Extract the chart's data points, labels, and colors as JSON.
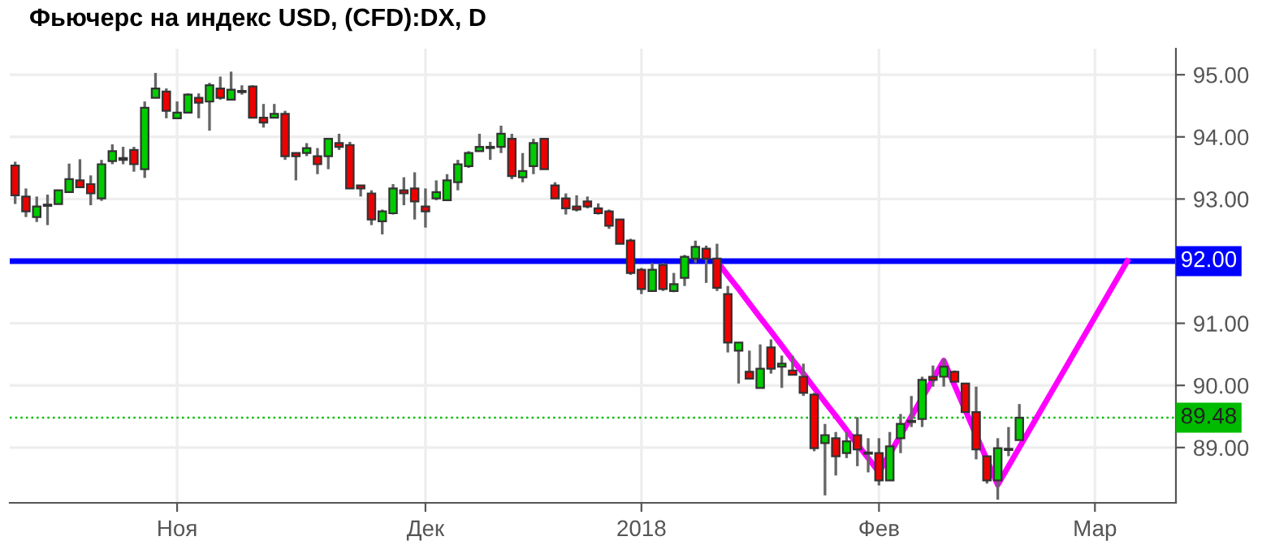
{
  "chart_data": {
    "type": "candlestick",
    "title": "Фьючерс на индекс USD, (CFD):DX, D",
    "categories": [
      null,
      null,
      null,
      null,
      null,
      null,
      null,
      null,
      null,
      null,
      null,
      null,
      null,
      null,
      null,
      "Ноя",
      null,
      null,
      null,
      null,
      null,
      null,
      null,
      null,
      null,
      null,
      null,
      null,
      null,
      null,
      null,
      null,
      null,
      null,
      null,
      null,
      null,
      null,
      "Дек",
      null,
      null,
      null,
      null,
      null,
      null,
      null,
      null,
      null,
      null,
      null,
      null,
      null,
      null,
      null,
      null,
      null,
      null,
      null,
      "2018",
      null,
      null,
      null,
      null,
      null,
      null,
      null,
      null,
      null,
      null,
      null,
      null,
      null,
      null,
      null,
      null,
      null,
      null,
      null,
      null,
      null,
      "Фев",
      null,
      null,
      null,
      null,
      null,
      null,
      null,
      null,
      null,
      null,
      null,
      null,
      null,
      null,
      null,
      null,
      null,
      null,
      null,
      "Мар",
      null,
      null,
      null,
      null,
      null,
      null,
      null
    ],
    "ohlc": [
      [
        93.54,
        93.6,
        92.92,
        93.06
      ],
      [
        93.04,
        93.17,
        92.71,
        92.8
      ],
      [
        92.71,
        93.04,
        92.63,
        92.88
      ],
      [
        92.89,
        93.07,
        92.58,
        92.9
      ],
      [
        92.92,
        93.14,
        92.92,
        93.14
      ],
      [
        93.11,
        93.57,
        93.11,
        93.32
      ],
      [
        93.3,
        93.64,
        93.19,
        93.19
      ],
      [
        93.24,
        93.38,
        92.9,
        93.09
      ],
      [
        93.01,
        93.63,
        92.97,
        93.56
      ],
      [
        93.61,
        93.88,
        93.56,
        93.77
      ],
      [
        93.66,
        93.84,
        93.56,
        93.63
      ],
      [
        93.79,
        93.84,
        93.44,
        93.56
      ],
      [
        93.48,
        94.57,
        93.34,
        94.47
      ],
      [
        94.63,
        95.03,
        94.63,
        94.78
      ],
      [
        94.73,
        94.78,
        94.3,
        94.42
      ],
      [
        94.3,
        94.57,
        94.3,
        94.39
      ],
      [
        94.39,
        94.7,
        94.39,
        94.68
      ],
      [
        94.63,
        94.7,
        94.3,
        94.55
      ],
      [
        94.57,
        94.87,
        94.1,
        94.83
      ],
      [
        94.78,
        94.97,
        94.6,
        94.63
      ],
      [
        94.6,
        95.05,
        94.6,
        94.76
      ],
      [
        94.72,
        94.83,
        94.68,
        94.73
      ],
      [
        94.81,
        94.83,
        94.31,
        94.31
      ],
      [
        94.31,
        94.53,
        94.15,
        94.23
      ],
      [
        94.31,
        94.53,
        94.31,
        94.37
      ],
      [
        94.37,
        94.42,
        93.63,
        93.69
      ],
      [
        93.74,
        93.74,
        93.3,
        93.69
      ],
      [
        93.74,
        93.9,
        93.69,
        93.82
      ],
      [
        93.69,
        93.82,
        93.4,
        93.56
      ],
      [
        93.69,
        93.97,
        93.48,
        93.97
      ],
      [
        93.9,
        94.05,
        93.79,
        93.84
      ],
      [
        93.87,
        93.92,
        93.17,
        93.17
      ],
      [
        93.22,
        93.22,
        93.04,
        93.17
      ],
      [
        93.09,
        93.14,
        92.58,
        92.67
      ],
      [
        92.64,
        92.83,
        92.43,
        92.8
      ],
      [
        92.77,
        93.24,
        92.75,
        93.17
      ],
      [
        93.14,
        93.35,
        92.9,
        93.09
      ],
      [
        93.17,
        93.43,
        92.67,
        92.96
      ],
      [
        92.88,
        93.17,
        92.54,
        92.8
      ],
      [
        93.01,
        93.3,
        92.98,
        93.11
      ],
      [
        92.98,
        93.4,
        92.98,
        93.3
      ],
      [
        93.27,
        93.63,
        93.14,
        93.56
      ],
      [
        93.53,
        93.77,
        93.5,
        93.74
      ],
      [
        93.77,
        94.05,
        93.77,
        93.84
      ],
      [
        93.83,
        93.92,
        93.63,
        93.82
      ],
      [
        93.84,
        94.18,
        93.74,
        94.05
      ],
      [
        93.97,
        94.05,
        93.32,
        93.37
      ],
      [
        93.35,
        93.74,
        93.27,
        93.45
      ],
      [
        93.53,
        93.97,
        93.4,
        93.9
      ],
      [
        93.97,
        93.97,
        93.48,
        93.48
      ],
      [
        93.22,
        93.27,
        93.01,
        93.01
      ],
      [
        93.01,
        93.09,
        92.75,
        92.85
      ],
      [
        92.88,
        93.06,
        92.8,
        92.83
      ],
      [
        92.96,
        93.04,
        92.85,
        92.88
      ],
      [
        92.85,
        92.93,
        92.75,
        92.77
      ],
      [
        92.8,
        92.83,
        92.52,
        92.57
      ],
      [
        92.67,
        92.67,
        92.28,
        92.28
      ],
      [
        92.33,
        92.36,
        91.78,
        91.81
      ],
      [
        91.86,
        91.89,
        91.47,
        91.55
      ],
      [
        91.52,
        91.97,
        91.52,
        91.86
      ],
      [
        91.94,
        91.97,
        91.52,
        91.55
      ],
      [
        91.52,
        91.81,
        91.5,
        91.63
      ],
      [
        91.73,
        92.1,
        91.6,
        92.07
      ],
      [
        92.04,
        92.33,
        91.97,
        92.23
      ],
      [
        92.2,
        92.25,
        91.65,
        92.04
      ],
      [
        92.04,
        92.28,
        91.52,
        91.57
      ],
      [
        91.47,
        91.6,
        90.53,
        90.69
      ],
      [
        90.56,
        90.69,
        90.03,
        90.69
      ],
      [
        90.22,
        90.56,
        90.11,
        90.11
      ],
      [
        89.96,
        90.66,
        89.96,
        90.27
      ],
      [
        90.61,
        90.74,
        90.19,
        90.27
      ],
      [
        90.3,
        90.48,
        89.96,
        90.35
      ],
      [
        90.24,
        90.48,
        90.17,
        90.17
      ],
      [
        90.14,
        90.35,
        89.83,
        89.88
      ],
      [
        89.85,
        89.88,
        88.94,
        88.99
      ],
      [
        89.07,
        89.38,
        88.23,
        89.2
      ],
      [
        89.15,
        89.25,
        88.55,
        88.86
      ],
      [
        88.91,
        89.25,
        88.83,
        89.1
      ],
      [
        89.2,
        89.49,
        88.7,
        88.97
      ],
      [
        88.9,
        89.15,
        88.6,
        88.91
      ],
      [
        88.91,
        89.15,
        88.39,
        88.47
      ],
      [
        88.47,
        89.25,
        88.47,
        89.02
      ],
      [
        89.15,
        89.54,
        88.91,
        89.38
      ],
      [
        89.43,
        89.83,
        89.33,
        89.41
      ],
      [
        89.46,
        90.14,
        89.33,
        90.09
      ],
      [
        90.14,
        90.32,
        89.98,
        90.09
      ],
      [
        90.14,
        90.43,
        89.98,
        90.3
      ],
      [
        90.22,
        90.24,
        90.06,
        90.06
      ],
      [
        90.03,
        90.03,
        89.57,
        89.57
      ],
      [
        89.57,
        89.98,
        88.81,
        88.97
      ],
      [
        88.86,
        88.86,
        88.42,
        88.47
      ],
      [
        88.47,
        89.15,
        88.16,
        88.99
      ],
      [
        88.96,
        89.33,
        88.86,
        88.97
      ],
      [
        89.12,
        89.7,
        89.12,
        89.48
      ],
      null,
      null,
      null,
      null,
      null,
      null,
      null,
      null,
      null,
      null,
      null,
      null,
      null,
      null
    ],
    "colors": [
      "#ee0000",
      "#ee0000",
      "#00cc00",
      "#00cc00",
      "#00cc00",
      "#00cc00",
      "#ee0000",
      "#ee0000",
      "#00cc00",
      "#00cc00",
      "#ee0000",
      "#ee0000",
      "#00cc00",
      "#00cc00",
      "#ee0000",
      "#00cc00",
      "#00cc00",
      "#ee0000",
      "#00cc00",
      "#ee0000",
      "#00cc00",
      "#00cc00",
      "#ee0000",
      "#ee0000",
      "#00cc00",
      "#ee0000",
      "#ee0000",
      "#00cc00",
      "#ee0000",
      "#00cc00",
      "#ee0000",
      "#ee0000",
      "#ee0000",
      "#ee0000",
      "#00cc00",
      "#00cc00",
      "#ee0000",
      "#ee0000",
      "#ee0000",
      "#00cc00",
      "#00cc00",
      "#00cc00",
      "#00cc00",
      "#00cc00",
      "#ee0000",
      "#00cc00",
      "#ee0000",
      "#00cc00",
      "#00cc00",
      "#ee0000",
      "#ee0000",
      "#ee0000",
      "#ee0000",
      "#ee0000",
      "#ee0000",
      "#ee0000",
      "#ee0000",
      "#ee0000",
      "#ee0000",
      "#00cc00",
      "#ee0000",
      "#00cc00",
      "#00cc00",
      "#00cc00",
      "#ee0000",
      "#ee0000",
      "#ee0000",
      "#00cc00",
      "#ee0000",
      "#00cc00",
      "#ee0000",
      "#00cc00",
      "#ee0000",
      "#ee0000",
      "#ee0000",
      "#00cc00",
      "#ee0000",
      "#00cc00",
      "#ee0000",
      "#00cc00",
      "#ee0000",
      "#00cc00",
      "#00cc00",
      "#ee0000",
      "#00cc00",
      "#ee0000",
      "#00cc00",
      "#ee0000",
      "#ee0000",
      "#ee0000",
      "#ee0000",
      "#00cc00",
      "#00cc00",
      "#00cc00",
      null,
      null,
      null,
      null,
      null,
      null,
      null,
      null,
      null,
      null,
      null,
      null,
      null,
      null
    ],
    "series": [
      {
        "type": "line",
        "color": "#ff00ff",
        "values": [
          null,
          null,
          null,
          null,
          null,
          null,
          null,
          null,
          null,
          null,
          null,
          null,
          null,
          null,
          null,
          null,
          null,
          null,
          null,
          null,
          null,
          null,
          null,
          null,
          null,
          null,
          null,
          null,
          null,
          null,
          null,
          null,
          null,
          null,
          null,
          null,
          null,
          null,
          null,
          null,
          null,
          null,
          null,
          null,
          null,
          null,
          null,
          null,
          null,
          null,
          null,
          null,
          null,
          null,
          null,
          null,
          null,
          null,
          null,
          null,
          null,
          null,
          null,
          null,
          null,
          92.0,
          91.77,
          91.55,
          91.32,
          91.09,
          90.87,
          90.64,
          90.41,
          90.19,
          89.96,
          89.73,
          89.51,
          89.28,
          89.05,
          88.83,
          88.6,
          88.9,
          89.2,
          89.5,
          89.8,
          90.1,
          90.4,
          90.0,
          89.6,
          89.2,
          88.8,
          88.4,
          88.7,
          89.0,
          89.3,
          89.6,
          89.9,
          90.2,
          90.5,
          90.8,
          91.1,
          91.4,
          91.7,
          92.0,
          null,
          null,
          null,
          null
        ]
      }
    ],
    "ref_lines": [
      {
        "axis": "y",
        "value": 92,
        "label": "92.00",
        "color": "#0000ff",
        "line_style": "solid"
      },
      {
        "axis": "y",
        "value": 89.48,
        "label": "89.48",
        "color": "#00bb00",
        "line_style": "dotted"
      }
    ],
    "ylim": [
      88.11,
      95.42
    ],
    "yticks": [
      {
        "value": 89,
        "label": "89.00"
      },
      {
        "value": 90,
        "label": "90.00"
      },
      {
        "value": 91,
        "label": "91.00"
      },
      {
        "value": 93,
        "label": "93.00"
      },
      {
        "value": 94,
        "label": "94.00"
      },
      {
        "value": 95,
        "label": "95.00"
      }
    ],
    "grid": true
  }
}
